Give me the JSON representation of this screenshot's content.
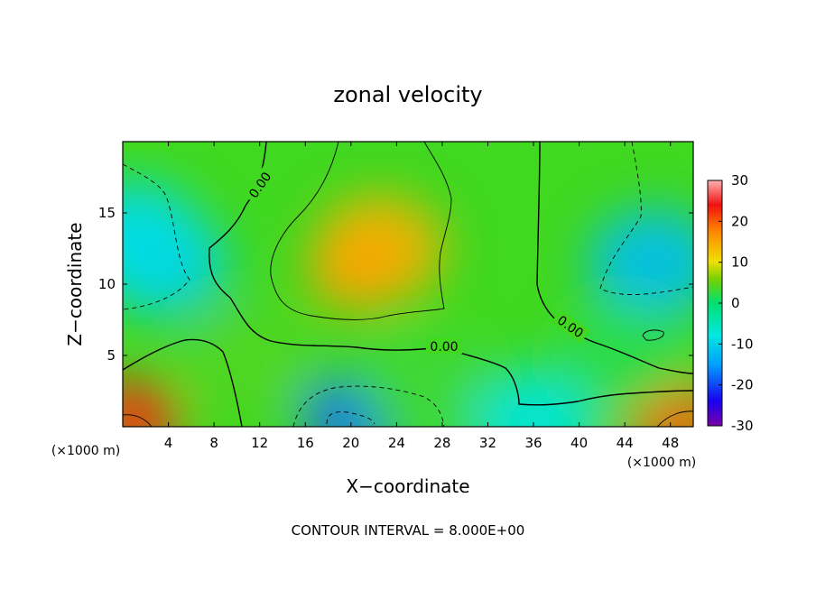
{
  "chart_data": {
    "type": "heatmap",
    "title": "zonal velocity",
    "xlabel": "X−coordinate",
    "ylabel": "Z−coordinate",
    "x_unit": "(×1000 m)",
    "z_unit": "(×1000 m)",
    "xlim": [
      0,
      50
    ],
    "ylim": [
      0,
      20
    ],
    "x_ticks": [
      4,
      8,
      12,
      16,
      20,
      24,
      28,
      32,
      36,
      40,
      44,
      48
    ],
    "y_ticks": [
      5,
      10,
      15
    ],
    "colorbar": {
      "min": -30,
      "max": 30,
      "ticks": [
        30,
        20,
        10,
        0,
        -10,
        -20,
        -30
      ],
      "colors": [
        "#7a00a8",
        "#1a00f0",
        "#00a0ff",
        "#00e8e0",
        "#00e070",
        "#7ad000",
        "#f0e000",
        "#ff8000",
        "#f01010",
        "#ffb0b0"
      ]
    },
    "contour_interval": "CONTOUR INTERVAL = 8.000E+00",
    "contour_labels": [
      "0.00",
      "0.00",
      "0.00",
      "0.00"
    ],
    "features": [
      {
        "x": 22.5,
        "z": 12.5,
        "value": 14
      },
      {
        "x": 20.5,
        "z": 11.0,
        "value": 15
      },
      {
        "x": 3.5,
        "z": 11.5,
        "value": -10
      },
      {
        "x": 1.0,
        "z": 13.5,
        "value": -9
      },
      {
        "x": 46.5,
        "z": 11.5,
        "value": -12
      },
      {
        "x": 20.0,
        "z": 0.6,
        "value": -18
      },
      {
        "x": 36.0,
        "z": 0.3,
        "value": -8
      },
      {
        "x": 0.8,
        "z": 0.5,
        "value": 22
      },
      {
        "x": 48.5,
        "z": 0.4,
        "value": 20
      },
      {
        "x": 11.0,
        "z": 4.5,
        "value": 4
      },
      {
        "x": 26.0,
        "z": 3.0,
        "value": 3
      },
      {
        "x": 44.0,
        "z": 5.0,
        "value": 2
      }
    ]
  }
}
